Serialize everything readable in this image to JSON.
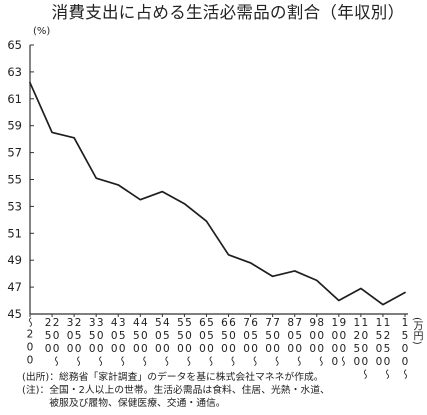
{
  "chart_data": {
    "type": "line",
    "title": "消費支出に占める生活必需品の割合（年収別）",
    "ylabel": "(%)",
    "xlabel": "(万円)",
    "ylim": [
      45,
      65
    ],
    "yticks": [
      45,
      47,
      49,
      51,
      53,
      55,
      57,
      59,
      61,
      63,
      65
    ],
    "categories": [
      "～200",
      "200～250",
      "250～300",
      "300～350",
      "350～400",
      "400～450",
      "450～500",
      "500～550",
      "550～600",
      "600～650",
      "650～700",
      "700～750",
      "750～800",
      "800～900",
      "900～1000",
      "1000～1250",
      "1250～1500",
      "1500～"
    ],
    "series": [
      {
        "values": [
          62.2,
          58.5,
          58.1,
          55.1,
          54.6,
          53.5,
          54.1,
          53.2,
          51.9,
          49.4,
          48.8,
          47.8,
          48.2,
          47.5,
          46.0,
          46.9,
          45.7,
          46.6
        ]
      }
    ],
    "grid": false,
    "legend": "none"
  },
  "notes": {
    "source": "(出所)：総務省「家計調査」のデータを基に株式会社マネネが作成。",
    "note_label": "(注)：",
    "note_lines": [
      "全国・2人以上の世帯。生活必需品は食料、住居、光熱・水道、",
      "被服及び履物、保健医療、交通・通信。"
    ]
  },
  "colors": {
    "line": "#1e1e1e",
    "axis": "#333333",
    "text": "#222222"
  }
}
